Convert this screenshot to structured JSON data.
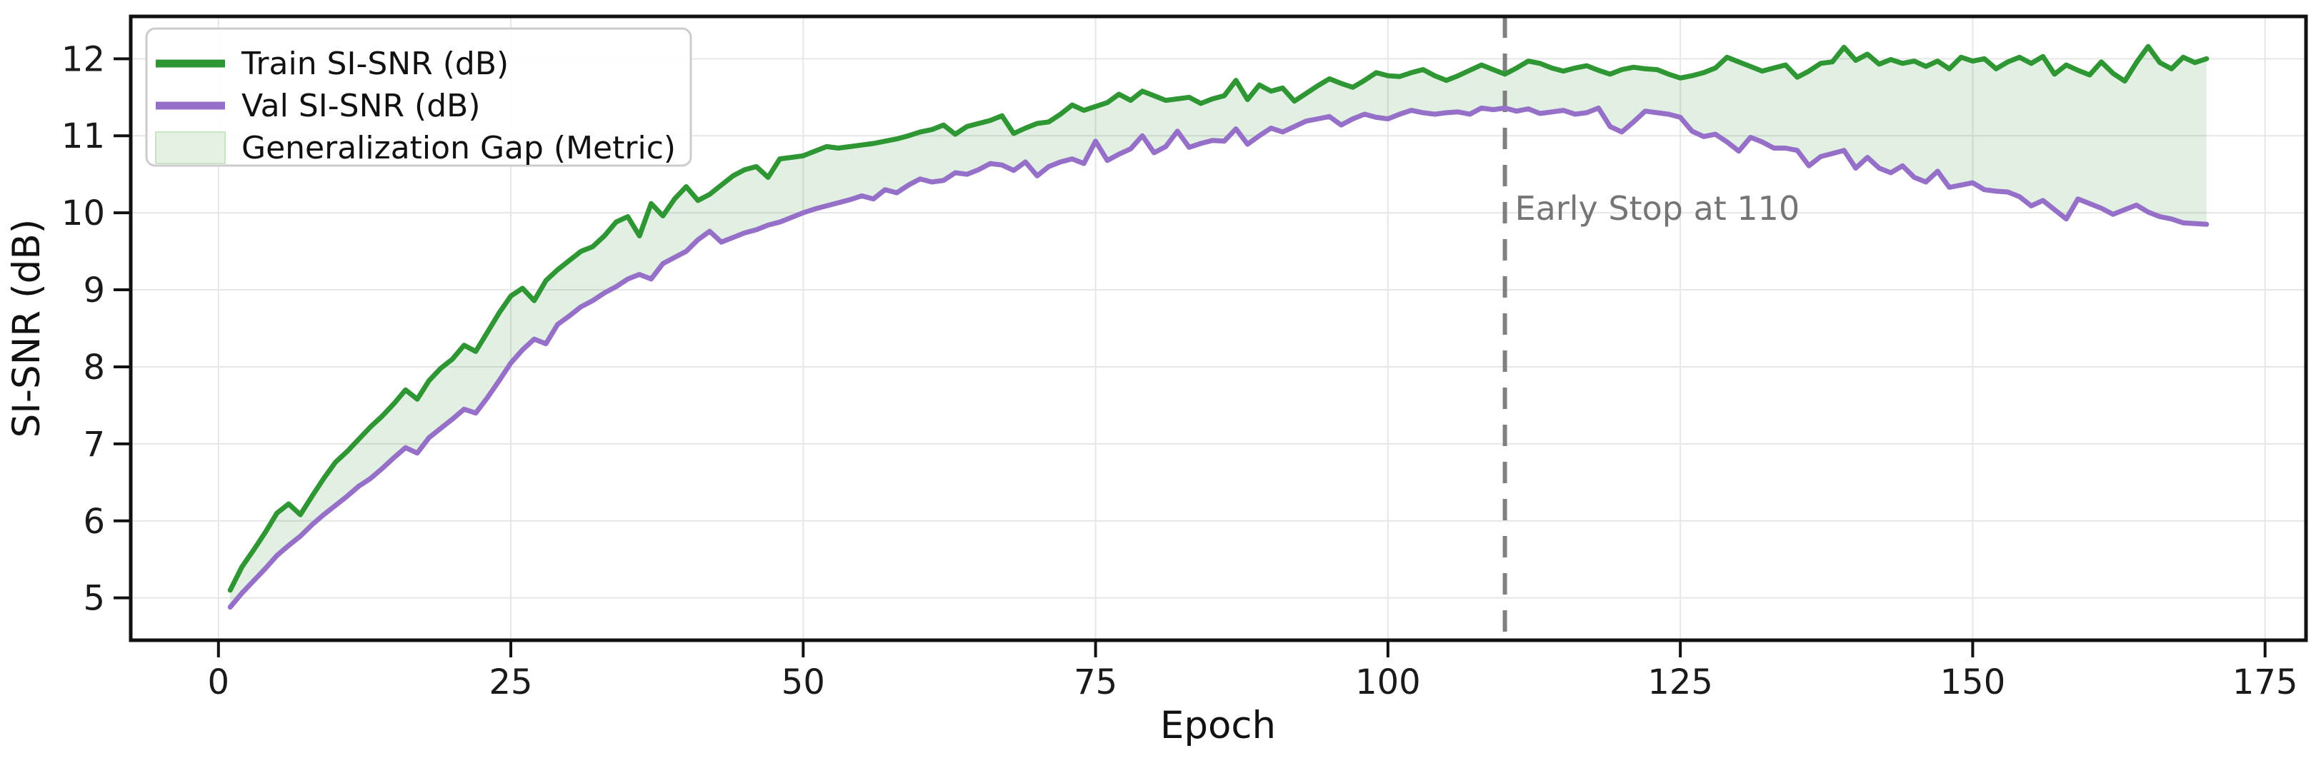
{
  "figure": {
    "background": "#ffffff",
    "plot_background": "#ffffff"
  },
  "axes": {
    "xlabel": "Epoch",
    "ylabel": "SI-SNR (dB)",
    "x_ticks": [
      0,
      25,
      50,
      75,
      100,
      125,
      150,
      175
    ],
    "y_ticks": [
      5,
      6,
      7,
      8,
      9,
      10,
      11,
      12
    ],
    "xlim": [
      -7.5,
      178.5
    ],
    "ylim": [
      4.45,
      12.55
    ],
    "grid": true,
    "grid_color": "#e6e6e6",
    "spine_color": "#111111",
    "tick_color": "#111111"
  },
  "legend": {
    "position": "upper-left",
    "border_color": "#cccccc",
    "items": [
      {
        "label": "Train SI-SNR (dB)",
        "type": "line",
        "color": "#2e9632"
      },
      {
        "label": "Val SI-SNR (dB)",
        "type": "line",
        "color": "#9670c8"
      },
      {
        "label": "Generalization Gap (Metric)",
        "type": "patch",
        "fill": "#e4f1e3",
        "edge": "#c9e3c7"
      }
    ]
  },
  "annotation": {
    "text": "Early Stop at 110",
    "x": 110,
    "text_color": "#757575",
    "line_color": "#808080",
    "line_style": "dashed"
  },
  "chart_data": {
    "type": "line",
    "title": "",
    "xlabel": "Epoch",
    "ylabel": "SI-SNR (dB)",
    "xlim": [
      -7.5,
      178.5
    ],
    "ylim": [
      4.45,
      12.55
    ],
    "legend_position": "upper-left",
    "grid": true,
    "x_start": 1,
    "x_step": 1,
    "x_end": 170,
    "gap_fill_between": [
      "Train SI-SNR (dB)",
      "Val SI-SNR (dB)"
    ],
    "gap_fill_color": "rgba(46,150,50,0.14)",
    "early_stop_epoch": 110,
    "series": [
      {
        "name": "Train SI-SNR (dB)",
        "color": "#2e9632",
        "width": 7,
        "values": [
          5.1,
          5.4,
          5.62,
          5.85,
          6.1,
          6.22,
          6.08,
          6.32,
          6.55,
          6.76,
          6.9,
          7.06,
          7.22,
          7.36,
          7.52,
          7.7,
          7.58,
          7.82,
          7.98,
          8.1,
          8.28,
          8.2,
          8.45,
          8.7,
          8.92,
          9.02,
          8.86,
          9.12,
          9.26,
          9.38,
          9.5,
          9.56,
          9.7,
          9.88,
          9.95,
          9.7,
          10.12,
          9.96,
          10.18,
          10.34,
          10.16,
          10.24,
          10.36,
          10.48,
          10.56,
          10.6,
          10.46,
          10.7,
          10.72,
          10.74,
          10.8,
          10.86,
          10.84,
          10.86,
          10.88,
          10.9,
          10.93,
          10.96,
          11.0,
          11.05,
          11.08,
          11.14,
          11.02,
          11.12,
          11.16,
          11.2,
          11.26,
          11.03,
          11.1,
          11.16,
          11.18,
          11.28,
          11.4,
          11.33,
          11.38,
          11.43,
          11.54,
          11.46,
          11.58,
          11.52,
          11.46,
          11.48,
          11.5,
          11.42,
          11.48,
          11.52,
          11.72,
          11.47,
          11.66,
          11.58,
          11.62,
          11.45,
          11.55,
          11.65,
          11.74,
          11.68,
          11.63,
          11.72,
          11.82,
          11.78,
          11.77,
          11.82,
          11.86,
          11.78,
          11.72,
          11.78,
          11.85,
          11.92,
          11.86,
          11.8,
          11.88,
          11.97,
          11.94,
          11.88,
          11.84,
          11.88,
          11.91,
          11.85,
          11.8,
          11.86,
          11.89,
          11.87,
          11.86,
          11.8,
          11.75,
          11.78,
          11.82,
          11.88,
          12.02,
          11.96,
          11.9,
          11.84,
          11.88,
          11.92,
          11.76,
          11.84,
          11.94,
          11.96,
          12.15,
          11.98,
          12.06,
          11.93,
          11.99,
          11.94,
          11.97,
          11.9,
          11.97,
          11.87,
          12.02,
          11.97,
          12.0,
          11.87,
          11.96,
          12.02,
          11.94,
          12.03,
          11.8,
          11.92,
          11.85,
          11.79,
          11.96,
          11.81,
          11.71,
          11.95,
          12.16,
          11.95,
          11.87,
          12.02,
          11.95,
          12.0
        ]
      },
      {
        "name": "Val SI-SNR (dB)",
        "color": "#9670c8",
        "width": 7,
        "values": [
          4.88,
          5.06,
          5.22,
          5.38,
          5.55,
          5.68,
          5.8,
          5.95,
          6.08,
          6.2,
          6.32,
          6.45,
          6.55,
          6.68,
          6.82,
          6.95,
          6.88,
          7.08,
          7.2,
          7.32,
          7.45,
          7.4,
          7.6,
          7.82,
          8.05,
          8.22,
          8.36,
          8.3,
          8.55,
          8.66,
          8.78,
          8.86,
          8.96,
          9.04,
          9.14,
          9.2,
          9.14,
          9.34,
          9.42,
          9.5,
          9.65,
          9.76,
          9.62,
          9.68,
          9.74,
          9.78,
          9.84,
          9.88,
          9.94,
          10.0,
          10.05,
          10.09,
          10.13,
          10.17,
          10.22,
          10.18,
          10.3,
          10.26,
          10.36,
          10.44,
          10.4,
          10.42,
          10.52,
          10.5,
          10.56,
          10.64,
          10.62,
          10.55,
          10.66,
          10.48,
          10.6,
          10.66,
          10.7,
          10.64,
          10.93,
          10.68,
          10.76,
          10.83,
          11.0,
          10.78,
          10.86,
          11.06,
          10.85,
          10.9,
          10.94,
          10.93,
          11.09,
          10.89,
          11.0,
          11.1,
          11.05,
          11.12,
          11.19,
          11.22,
          11.25,
          11.14,
          11.22,
          11.28,
          11.24,
          11.22,
          11.28,
          11.33,
          11.3,
          11.28,
          11.3,
          11.31,
          11.28,
          11.36,
          11.34,
          11.36,
          11.32,
          11.35,
          11.29,
          11.31,
          11.33,
          11.28,
          11.3,
          11.36,
          11.12,
          11.05,
          11.18,
          11.32,
          11.3,
          11.28,
          11.24,
          11.06,
          10.99,
          11.02,
          10.92,
          10.8,
          10.98,
          10.92,
          10.84,
          10.84,
          10.81,
          10.61,
          10.73,
          10.77,
          10.81,
          10.58,
          10.72,
          10.58,
          10.52,
          10.61,
          10.46,
          10.4,
          10.54,
          10.33,
          10.36,
          10.39,
          10.3,
          10.28,
          10.27,
          10.21,
          10.09,
          10.16,
          10.04,
          9.92,
          10.18,
          10.12,
          10.06,
          9.98,
          10.04,
          10.1,
          10.01,
          9.95,
          9.92,
          9.87,
          9.86,
          9.85
        ]
      }
    ]
  }
}
